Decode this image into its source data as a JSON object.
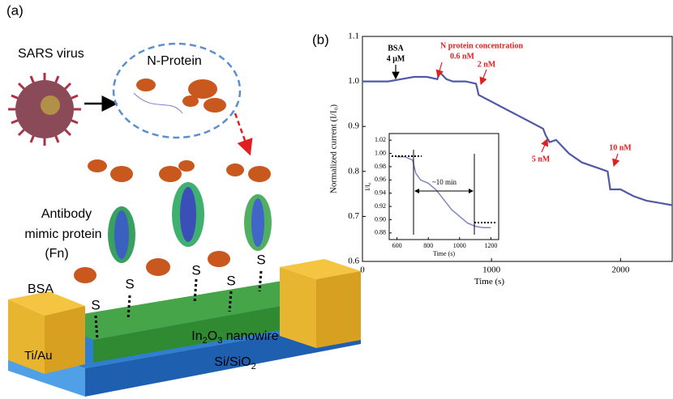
{
  "panel_a": {
    "label": "(a)",
    "virus": "SARS virus",
    "protein": "N-Protein",
    "antibody": [
      "Antibody",
      "mimic protein",
      "(Fn)"
    ],
    "bsa": "BSA",
    "sulfur": "S",
    "nanowire": [
      "In",
      "2",
      "O",
      "3",
      " nanowire"
    ],
    "contact": "Ti/Au",
    "substrate": [
      "Si/SiO",
      "2"
    ]
  },
  "chart_data": [
    {
      "type": "line",
      "panel_label": "(b)",
      "x_label": "Time (s)",
      "y_label": "Normalized current (I/I₀)",
      "xlim": [
        0,
        2400
      ],
      "xticks": [
        0,
        1000,
        2000
      ],
      "ylim": [
        0.6,
        1.1
      ],
      "yticks": [
        0.6,
        0.7,
        0.8,
        0.9,
        {
          "value": 1,
          "label": "1.0"
        },
        1.1
      ],
      "annotations": [
        "BSA",
        "4 μM",
        "N protein concentration",
        "0.6 nM",
        "2 nM",
        "5 nM",
        "10 nM"
      ],
      "series": [
        {
          "color": "#4f5aa6",
          "x": [
            0,
            100,
            200,
            300,
            400,
            500,
            580,
            600,
            650,
            700,
            800,
            880,
            900,
            1000,
            1100,
            1200,
            1300,
            1400,
            1420,
            1450,
            1500,
            1600,
            1700,
            1800,
            1900,
            1920,
            2000,
            2100,
            2200,
            2300,
            2400
          ],
          "values": [
            1.0,
            1.0,
            1.0,
            1.005,
            1.01,
            1.01,
            1.005,
            1.02,
            1.005,
            1.0,
            1.0,
            0.995,
            0.97,
            0.955,
            0.94,
            0.925,
            0.91,
            0.895,
            0.88,
            0.865,
            0.87,
            0.84,
            0.82,
            0.81,
            0.8,
            0.76,
            0.76,
            0.745,
            0.735,
            0.73,
            0.725
          ]
        }
      ]
    },
    {
      "type": "line",
      "x_label": "Time (s)",
      "y_label": "I/I₀",
      "annotation": "~10 min",
      "xlim": [
        550,
        1250
      ],
      "xticks": [
        600,
        800,
        1000,
        1200
      ],
      "ylim": [
        0.87,
        1.03
      ],
      "yticks": [
        0.88,
        {
          "value": 0.9,
          "label": "0.90"
        },
        0.92,
        0.94,
        0.96,
        0.98,
        {
          "value": 1,
          "label": "1.00"
        },
        1.02
      ],
      "series": [
        {
          "color": "#7f86c0",
          "x": [
            600,
            650,
            700,
            720,
            750,
            800,
            850,
            900,
            950,
            1000,
            1050,
            1100,
            1150,
            1200
          ],
          "values": [
            0.995,
            0.995,
            0.99,
            0.97,
            0.96,
            0.955,
            0.945,
            0.93,
            0.915,
            0.905,
            0.895,
            0.89,
            0.888,
            0.888
          ]
        }
      ]
    }
  ]
}
